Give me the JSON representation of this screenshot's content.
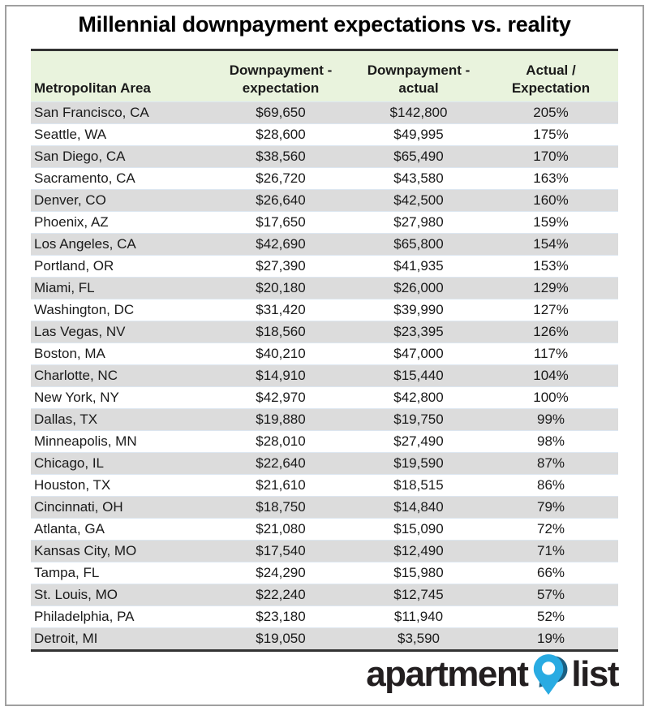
{
  "title": "Millennial downpayment expectations vs. reality",
  "colors": {
    "header_bg": "#e9f3dd",
    "stripe_bg": "#dcdcdc",
    "rule_color": "#333333",
    "pin_blue": "#29abe2",
    "pin_dark": "#1b5f82",
    "logo_text": "#231f20"
  },
  "logo": {
    "word1": "apartment",
    "word2": "list",
    "icon": "map-pin-icon"
  },
  "chart_data": {
    "type": "table",
    "title": "Millennial downpayment expectations vs. reality",
    "columns": [
      {
        "name": "metro",
        "label_lines": [
          "Metropolitan Area"
        ],
        "align": "left"
      },
      {
        "name": "expectation",
        "label_lines": [
          "Downpayment -",
          "expectation"
        ],
        "align": "center"
      },
      {
        "name": "actual",
        "label_lines": [
          "Downpayment -",
          "actual"
        ],
        "align": "center"
      },
      {
        "name": "ratio",
        "label_lines": [
          "Actual /",
          "Expectation"
        ],
        "align": "center"
      }
    ],
    "rows": [
      [
        "San Francisco, CA",
        "$69,650",
        "$142,800",
        "205%"
      ],
      [
        "Seattle, WA",
        "$28,600",
        "$49,995",
        "175%"
      ],
      [
        "San Diego, CA",
        "$38,560",
        "$65,490",
        "170%"
      ],
      [
        "Sacramento, CA",
        "$26,720",
        "$43,580",
        "163%"
      ],
      [
        "Denver, CO",
        "$26,640",
        "$42,500",
        "160%"
      ],
      [
        "Phoenix, AZ",
        "$17,650",
        "$27,980",
        "159%"
      ],
      [
        "Los Angeles, CA",
        "$42,690",
        "$65,800",
        "154%"
      ],
      [
        "Portland, OR",
        "$27,390",
        "$41,935",
        "153%"
      ],
      [
        "Miami, FL",
        "$20,180",
        "$26,000",
        "129%"
      ],
      [
        "Washington, DC",
        "$31,420",
        "$39,990",
        "127%"
      ],
      [
        "Las Vegas, NV",
        "$18,560",
        "$23,395",
        "126%"
      ],
      [
        "Boston, MA",
        "$40,210",
        "$47,000",
        "117%"
      ],
      [
        "Charlotte, NC",
        "$14,910",
        "$15,440",
        "104%"
      ],
      [
        "New York, NY",
        "$42,970",
        "$42,800",
        "100%"
      ],
      [
        "Dallas, TX",
        "$19,880",
        "$19,750",
        "99%"
      ],
      [
        "Minneapolis, MN",
        "$28,010",
        "$27,490",
        "98%"
      ],
      [
        "Chicago, IL",
        "$22,640",
        "$19,590",
        "87%"
      ],
      [
        "Houston, TX",
        "$21,610",
        "$18,515",
        "86%"
      ],
      [
        "Cincinnati, OH",
        "$18,750",
        "$14,840",
        "79%"
      ],
      [
        "Atlanta, GA",
        "$21,080",
        "$15,090",
        "72%"
      ],
      [
        "Kansas City, MO",
        "$17,540",
        "$12,490",
        "71%"
      ],
      [
        "Tampa, FL",
        "$24,290",
        "$15,980",
        "66%"
      ],
      [
        "St. Louis, MO",
        "$22,240",
        "$12,745",
        "57%"
      ],
      [
        "Philadelphia, PA",
        "$23,180",
        "$11,940",
        "52%"
      ],
      [
        "Detroit, MI",
        "$19,050",
        "$3,590",
        "19%"
      ]
    ]
  }
}
